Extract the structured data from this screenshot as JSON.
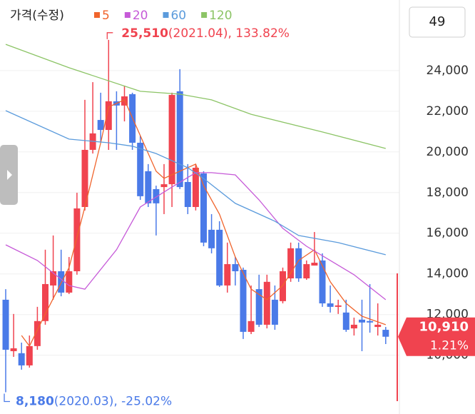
{
  "chart_data": {
    "type": "candlestick",
    "legend_title": "가격(수정)",
    "period_count": 49,
    "up_color": "#f0434f",
    "down_color": "#4a7ae8",
    "open": [
      12730,
      10200,
      10100,
      9500,
      10450,
      11680,
      13430,
      14130,
      13080,
      14130,
      17290,
      20100,
      21570,
      21080,
      22490,
      22280,
      22840,
      20450,
      19050,
      18170,
      18270,
      18410,
      22980,
      18520,
      17290,
      18940,
      16170,
      16170,
      13430,
      14480,
      14200,
      11150,
      13250,
      11500,
      12730,
      12660,
      13780,
      15260,
      13780,
      14410,
      14660,
      12550,
      12380,
      12100,
      11320,
      11750,
      11680,
      11390,
      11250
    ],
    "high": [
      13250,
      12030,
      10620,
      10970,
      12380,
      15190,
      15890,
      15190,
      14830,
      17990,
      22560,
      23430,
      22910,
      25510,
      22980,
      23260,
      22910,
      20800,
      19400,
      18340,
      19400,
      22910,
      24070,
      19400,
      19400,
      19050,
      16940,
      16590,
      15540,
      14830,
      14310,
      13430,
      13960,
      13960,
      13430,
      14310,
      15540,
      15540,
      14660,
      16060,
      15010,
      13430,
      12730,
      12730,
      11850,
      12730,
      13500,
      12550,
      11390
    ],
    "low": [
      8180,
      9920,
      9290,
      9390,
      10270,
      11500,
      12730,
      12900,
      13010,
      13960,
      17120,
      19920,
      20450,
      20100,
      20100,
      21500,
      20100,
      17640,
      17290,
      15890,
      16940,
      17290,
      18170,
      16940,
      17120,
      15360,
      15010,
      13360,
      13080,
      13430,
      10800,
      11040,
      11390,
      11320,
      11250,
      12550,
      13610,
      13610,
      13710,
      14410,
      12380,
      12100,
      12030,
      11150,
      10970,
      10200,
      11110,
      10970,
      10550
    ],
    "close": [
      10270,
      10340,
      9500,
      10450,
      11680,
      13500,
      14130,
      13080,
      14130,
      17220,
      20100,
      20910,
      21080,
      22490,
      22280,
      22730,
      20450,
      17820,
      17470,
      17470,
      18410,
      22800,
      18270,
      17290,
      19220,
      15540,
      15260,
      13430,
      14480,
      14130,
      11150,
      11680,
      11500,
      13610,
      11500,
      14130,
      15260,
      13780,
      14480,
      14550,
      12550,
      12380,
      12450,
      11250,
      11500,
      11610,
      11610,
      11500,
      10910
    ],
    "series": [
      {
        "name": "5",
        "color": "#f0642c",
        "x": [
          2,
          3,
          5,
          8,
          10,
          12,
          13,
          15,
          17,
          19,
          20,
          22,
          24,
          25,
          27,
          29,
          31,
          33,
          35,
          37,
          39,
          41,
          43,
          45,
          48
        ],
        "values": [
          10970,
          10450,
          12030,
          14310,
          17290,
          20450,
          22210,
          22560,
          20800,
          19050,
          18700,
          19050,
          19400,
          18340,
          16940,
          14830,
          13250,
          12730,
          13430,
          14660,
          15190,
          13610,
          12550,
          11920,
          11500
        ]
      },
      {
        "name": "20",
        "color": "#c65ad8",
        "x": [
          0,
          4,
          8,
          10,
          14,
          17,
          21,
          24,
          26,
          29,
          32,
          35,
          38,
          41,
          44,
          48
        ],
        "values": [
          15430,
          14660,
          13430,
          13250,
          15190,
          17290,
          18270,
          18980,
          18980,
          18870,
          17640,
          16240,
          15360,
          14660,
          13960,
          12730
        ]
      },
      {
        "name": "60",
        "color": "#5b9bdc",
        "x": [
          0,
          8,
          13,
          16,
          19,
          23,
          25,
          29,
          34,
          37,
          42,
          48
        ],
        "values": [
          22030,
          20630,
          20450,
          20280,
          19920,
          19220,
          18690,
          17470,
          16590,
          15890,
          15540,
          14940
        ]
      },
      {
        "name": "120",
        "color": "#8cc466",
        "x": [
          0,
          8,
          17,
          22,
          26,
          31,
          40,
          48
        ],
        "values": [
          25290,
          24140,
          22980,
          22840,
          22560,
          21850,
          20980,
          20170
        ]
      }
    ],
    "high_marker": {
      "value": 25510,
      "label": "25,510",
      "note": "(2021.04), 133.82%"
    },
    "low_marker": {
      "value": 8180,
      "label": "8,180",
      "note": "(2020.03), -25.02%"
    },
    "last_price": {
      "value": 10910,
      "label": "10,910",
      "change": "1.21%"
    },
    "ylim": [
      7110,
      27470
    ],
    "yticks": [
      {
        "value": 10000,
        "label": "10,000"
      },
      {
        "value": 12000,
        "label": "12,000"
      },
      {
        "value": 14000,
        "label": "14,000"
      },
      {
        "value": 16000,
        "label": "16,000"
      },
      {
        "value": 18000,
        "label": "18,000"
      },
      {
        "value": 20000,
        "label": "20,000"
      },
      {
        "value": 22000,
        "label": "22,000"
      },
      {
        "value": 24000,
        "label": "24,000"
      }
    ],
    "grid": true
  }
}
